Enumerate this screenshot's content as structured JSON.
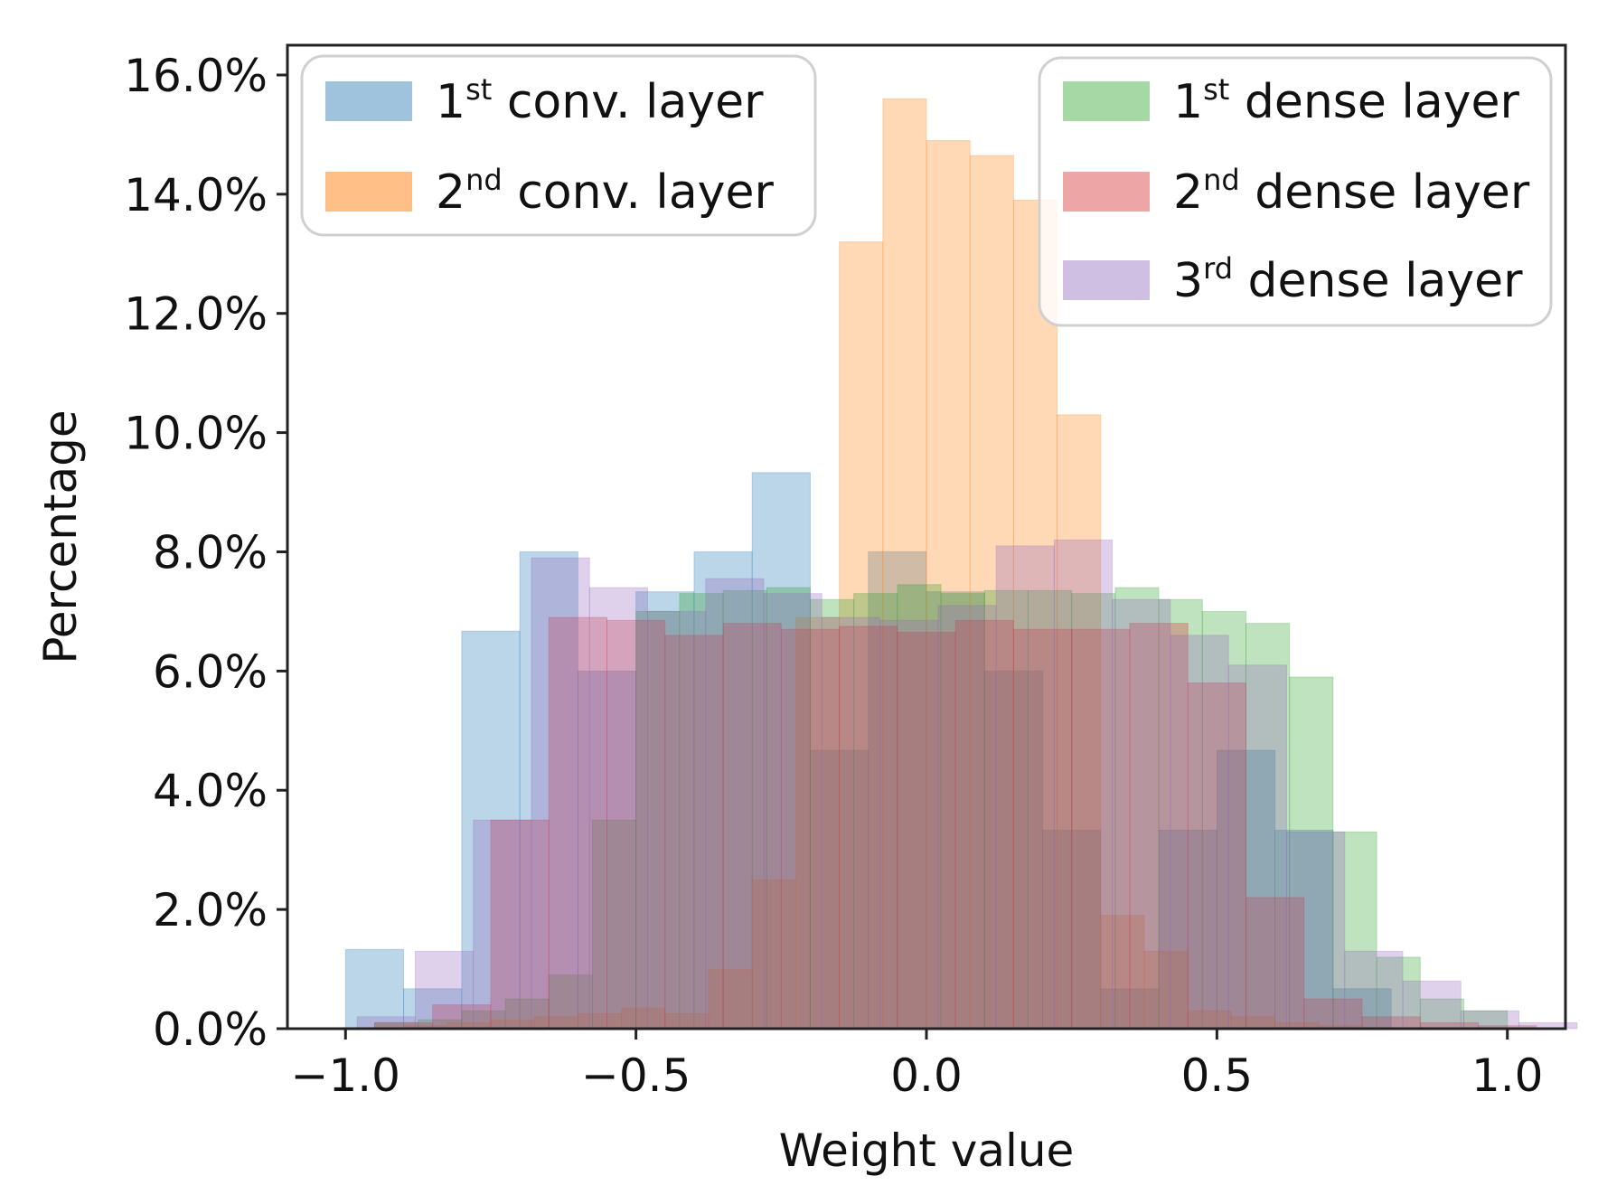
{
  "chart_data": {
    "type": "histogram",
    "xlabel": "Weight value",
    "ylabel": "Percentage",
    "xlim": [
      -1.1,
      1.1
    ],
    "ylim": [
      0,
      16.5
    ],
    "xticks": [
      -1.0,
      -0.5,
      0.0,
      0.5,
      1.0
    ],
    "xtick_labels": [
      "−1.0",
      "−0.5",
      "0.0",
      "0.5",
      "1.0"
    ],
    "yticks": [
      0,
      2,
      4,
      6,
      8,
      10,
      12,
      14,
      16
    ],
    "ytick_labels": [
      "0.0%",
      "2.0%",
      "4.0%",
      "6.0%",
      "8.0%",
      "10.0%",
      "12.0%",
      "14.0%",
      "16.0%"
    ],
    "grid": false,
    "legends": [
      {
        "placement": "top-left",
        "entries": [
          {
            "base": "1",
            "sup": "st",
            "text": " conv. layer",
            "color": "#9fc2dd"
          },
          {
            "base": "2",
            "sup": "nd",
            "text": " conv. layer",
            "color": "#ffbf86"
          }
        ]
      },
      {
        "placement": "top-right",
        "entries": [
          {
            "base": "1",
            "sup": "st",
            "text": " dense layer",
            "color": "#a6d8a6"
          },
          {
            "base": "2",
            "sup": "nd",
            "text": " dense layer",
            "color": "#eda5a5"
          },
          {
            "base": "3",
            "sup": "rd",
            "text": " dense layer",
            "color": "#cfbfe3"
          }
        ]
      }
    ],
    "series": [
      {
        "name": "1st conv. layer",
        "color": "#1f77b4",
        "bin_start": -1.0,
        "bin_width": 0.1,
        "values": [
          1.33,
          0.67,
          6.67,
          8.0,
          6.0,
          7.33,
          8.0,
          9.33,
          4.67,
          8.0,
          7.33,
          6.0,
          3.33,
          0.67,
          3.33,
          4.67,
          3.33,
          0.67,
          0.0,
          0.0
        ]
      },
      {
        "name": "2nd conv. layer",
        "color": "#ff7f0e",
        "bin_start": -0.9,
        "bin_width": 0.075,
        "values": [
          0.05,
          0.1,
          0.15,
          0.2,
          0.25,
          0.35,
          0.25,
          1.0,
          2.5,
          6.9,
          13.2,
          15.6,
          14.9,
          14.65,
          13.9,
          10.3,
          1.9,
          1.3,
          0.3,
          0.2,
          0.1,
          0.05
        ]
      },
      {
        "name": "1st dense layer",
        "color": "#2ca02c",
        "bin_start": -0.95,
        "bin_width": 0.075,
        "values": [
          0.1,
          0.15,
          0.3,
          0.5,
          0.9,
          3.5,
          7.0,
          7.3,
          7.35,
          7.4,
          7.2,
          7.3,
          7.45,
          7.3,
          7.35,
          7.35,
          7.3,
          7.4,
          7.2,
          7.0,
          6.8,
          5.9,
          3.3,
          1.2,
          0.5,
          0.3
        ]
      },
      {
        "name": "2nd dense layer",
        "color": "#d62728",
        "bin_start": -0.95,
        "bin_width": 0.1,
        "values": [
          0.1,
          0.4,
          3.5,
          6.9,
          6.85,
          6.6,
          6.8,
          6.7,
          6.75,
          6.65,
          6.85,
          6.7,
          6.7,
          6.8,
          5.8,
          2.2,
          0.5,
          0.2,
          0.1,
          0.05
        ]
      },
      {
        "name": "3rd dense layer",
        "color": "#9467bd",
        "bin_start": -0.98,
        "bin_width": 0.1,
        "values": [
          0.2,
          1.3,
          3.5,
          7.9,
          7.4,
          7.0,
          7.55,
          7.3,
          6.9,
          6.85,
          7.1,
          8.1,
          8.2,
          7.2,
          6.6,
          6.1,
          3.3,
          1.3,
          0.8,
          0.3,
          0.1
        ]
      }
    ]
  }
}
